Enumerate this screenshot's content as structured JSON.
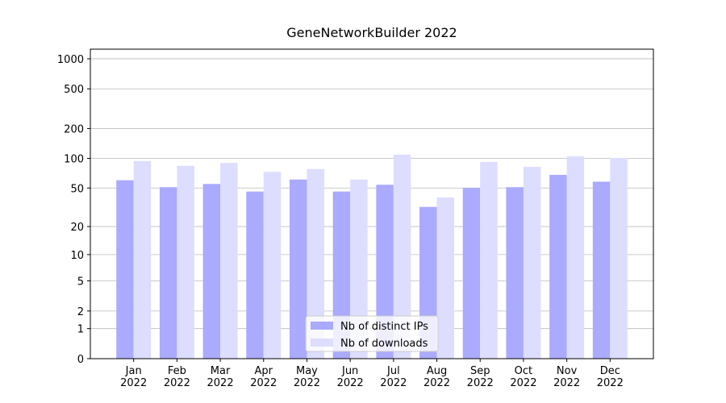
{
  "chart_data": {
    "type": "bar",
    "title": "GeneNetworkBuilder 2022",
    "categories": [
      "Jan\n2022",
      "Feb\n2022",
      "Mar\n2022",
      "Apr\n2022",
      "May\n2022",
      "Jun\n2022",
      "Jul\n2022",
      "Aug\n2022",
      "Sep\n2022",
      "Oct\n2022",
      "Nov\n2022",
      "Dec\n2022"
    ],
    "series": [
      {
        "name": "Nb of distinct IPs",
        "color": "#aaaaff",
        "values": [
          60,
          51,
          55,
          46,
          61,
          46,
          54,
          32,
          50,
          51,
          68,
          58
        ]
      },
      {
        "name": "Nb of downloads",
        "color": "#ddddff",
        "values": [
          94,
          84,
          90,
          73,
          78,
          61,
          109,
          40,
          92,
          82,
          105,
          101
        ]
      }
    ],
    "y_scale": "log1p",
    "ylim": [
      0,
      1249
    ],
    "yticks": [
      0,
      1,
      2,
      5,
      10,
      20,
      50,
      100,
      200,
      500,
      1000
    ],
    "grid": true,
    "legend": "lower center"
  }
}
